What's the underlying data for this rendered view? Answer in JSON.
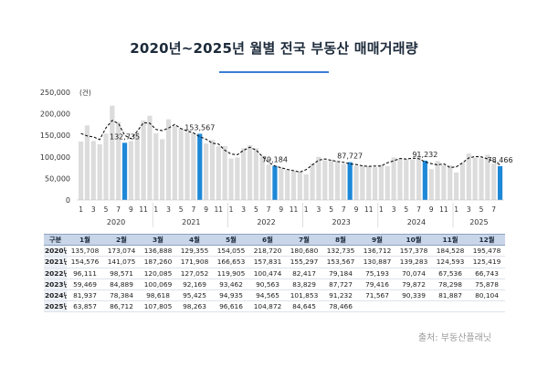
{
  "title": "2020년~2025년 월별 전국 부동산 매매거래량",
  "source": "출처: 부동산플래닛",
  "colors": {
    "bar": "#dcdcdc",
    "highlight": "#1e88d8",
    "line": "#111111",
    "header_bg": "#c9d6ea"
  },
  "chart_data": {
    "type": "bar",
    "unit_label": "(건)",
    "ylim": [
      0,
      250000
    ],
    "yticks": [
      "250,000",
      "200,000",
      "150,000",
      "100,000",
      "50,000",
      "0"
    ],
    "ytick_values": [
      250000,
      200000,
      150000,
      100000,
      50000,
      0
    ],
    "years": [
      "2020",
      "2021",
      "2022",
      "2023",
      "2024",
      "2025"
    ],
    "month_tick_labels": [
      "1",
      "3",
      "5",
      "7",
      "9",
      "11"
    ],
    "month_tick_labels_2025": [
      "1",
      "3",
      "5",
      "7"
    ],
    "values": [
      135708,
      173074,
      136888,
      129355,
      154055,
      218720,
      180680,
      132735,
      136712,
      157378,
      184528,
      195478,
      154576,
      141075,
      187260,
      171908,
      166653,
      157831,
      155297,
      153567,
      130887,
      139283,
      124593,
      125419,
      96111,
      98571,
      120085,
      127052,
      119905,
      100474,
      82417,
      79184,
      75193,
      70074,
      67536,
      66743,
      59469,
      84889,
      100069,
      92169,
      93462,
      90563,
      83829,
      87727,
      79416,
      79872,
      78298,
      75878,
      81937,
      78384,
      98618,
      95425,
      94935,
      94565,
      101853,
      91232,
      71567,
      90339,
      81887,
      80104,
      63857,
      86712,
      107805,
      98263,
      96616,
      104872,
      84645,
      78466
    ],
    "highlight_indices": [
      7,
      19,
      31,
      43,
      55,
      67
    ],
    "annotations": [
      {
        "index": 7,
        "label": "132,735"
      },
      {
        "index": 19,
        "label": "153,567"
      },
      {
        "index": 31,
        "label": "79,184"
      },
      {
        "index": 43,
        "label": "87,727"
      },
      {
        "index": 55,
        "label": "91,232"
      },
      {
        "index": 67,
        "label": "78,466"
      }
    ],
    "moving_average_line": true
  },
  "table": {
    "header": [
      "구분",
      "1월",
      "2월",
      "3월",
      "4월",
      "5월",
      "6월",
      "7월",
      "8월",
      "9월",
      "10월",
      "11월",
      "12월"
    ],
    "rows": [
      [
        "2020년",
        "135,708",
        "173,074",
        "136,888",
        "129,355",
        "154,055",
        "218,720",
        "180,680",
        "132,735",
        "136,712",
        "157,378",
        "184,528",
        "195,478"
      ],
      [
        "2021년",
        "154,576",
        "141,075",
        "187,260",
        "171,908",
        "166,653",
        "157,831",
        "155,297",
        "153,567",
        "130,887",
        "139,283",
        "124,593",
        "125,419"
      ],
      [
        "2022년",
        "96,111",
        "98,571",
        "120,085",
        "127,052",
        "119,905",
        "100,474",
        "82,417",
        "79,184",
        "75,193",
        "70,074",
        "67,536",
        "66,743"
      ],
      [
        "2023년",
        "59,469",
        "84,889",
        "100,069",
        "92,169",
        "93,462",
        "90,563",
        "83,829",
        "87,727",
        "79,416",
        "79,872",
        "78,298",
        "75,878"
      ],
      [
        "2024년",
        "81,937",
        "78,384",
        "98,618",
        "95,425",
        "94,935",
        "94,565",
        "101,853",
        "91,232",
        "71,567",
        "90,339",
        "81,887",
        "80,104"
      ],
      [
        "2025년",
        "63,857",
        "86,712",
        "107,805",
        "98,263",
        "96,616",
        "104,872",
        "84,645",
        "78,466",
        "",
        "",
        "",
        ""
      ]
    ]
  }
}
